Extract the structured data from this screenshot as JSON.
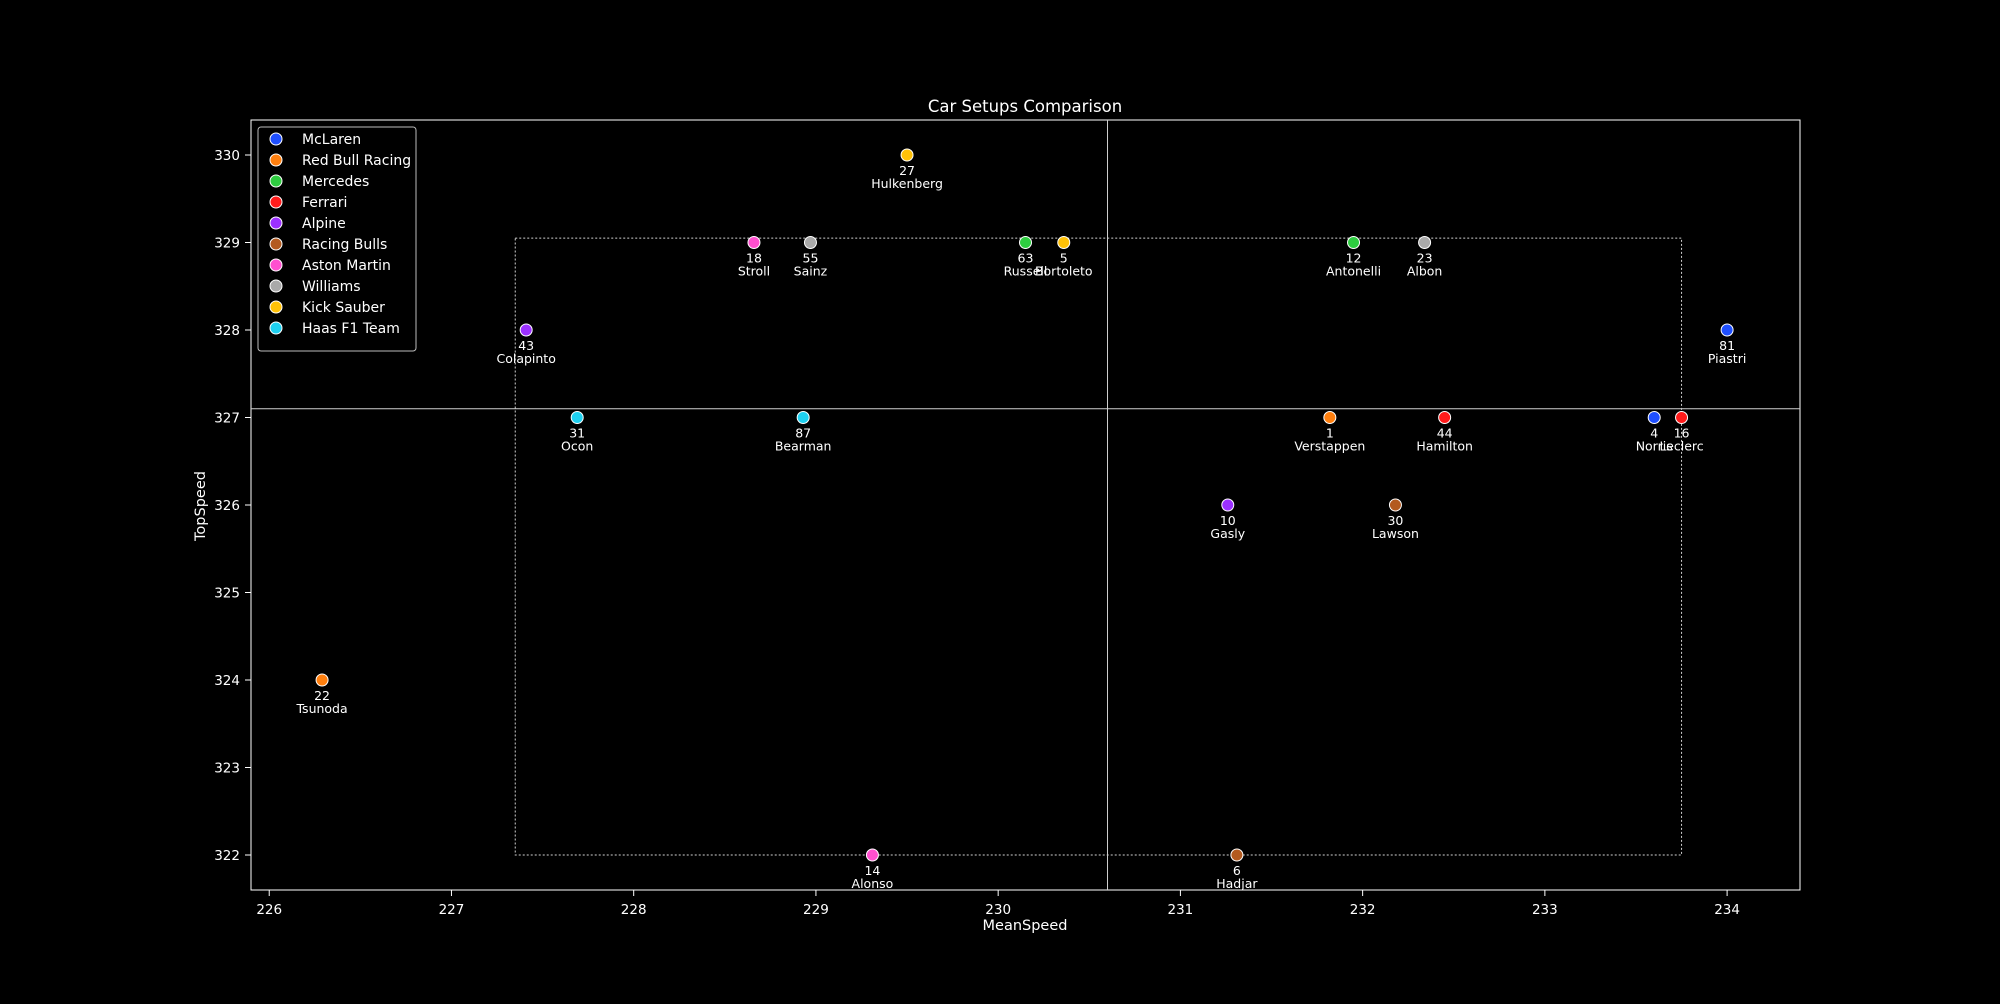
{
  "chart_data": {
    "type": "scatter",
    "title": "Car Setups Comparison",
    "xlabel": "MeanSpeed",
    "ylabel": "TopSpeed",
    "xlim": [
      225.9,
      234.4
    ],
    "ylim": [
      321.6,
      330.4
    ],
    "xticks": [
      226,
      227,
      228,
      229,
      230,
      231,
      232,
      233,
      234
    ],
    "yticks": [
      322,
      323,
      324,
      325,
      326,
      327,
      328,
      329,
      330
    ],
    "grid": false,
    "legend_position": "top-left",
    "reference_lines": {
      "x": 230.6,
      "y": 327.1
    },
    "highlight_box": {
      "x": [
        227.35,
        233.75
      ],
      "y": [
        322.0,
        329.05
      ]
    },
    "teams": [
      {
        "name": "McLaren",
        "color": "#1f4fff"
      },
      {
        "name": "Red Bull Racing",
        "color": "#ff7f0e"
      },
      {
        "name": "Mercedes",
        "color": "#2ecc40"
      },
      {
        "name": "Ferrari",
        "color": "#ff1a1a"
      },
      {
        "name": "Alpine",
        "color": "#9b30ff"
      },
      {
        "name": "Racing Bulls",
        "color": "#b35a1f"
      },
      {
        "name": "Aston Martin",
        "color": "#ff4fcf"
      },
      {
        "name": "Williams",
        "color": "#a9a9a9"
      },
      {
        "name": "Kick Sauber",
        "color": "#ffc107"
      },
      {
        "name": "Haas F1 Team",
        "color": "#1ed0f0"
      }
    ],
    "points": [
      {
        "number": "81",
        "driver": "Piastri",
        "team": "McLaren",
        "x": 234.0,
        "y": 328
      },
      {
        "number": "4",
        "driver": "Norris",
        "team": "McLaren",
        "x": 233.6,
        "y": 327
      },
      {
        "number": "1",
        "driver": "Verstappen",
        "team": "Red Bull Racing",
        "x": 231.82,
        "y": 327
      },
      {
        "number": "22",
        "driver": "Tsunoda",
        "team": "Red Bull Racing",
        "x": 226.29,
        "y": 324
      },
      {
        "number": "63",
        "driver": "Russell",
        "team": "Mercedes",
        "x": 230.15,
        "y": 329
      },
      {
        "number": "12",
        "driver": "Antonelli",
        "team": "Mercedes",
        "x": 231.95,
        "y": 329
      },
      {
        "number": "44",
        "driver": "Hamilton",
        "team": "Ferrari",
        "x": 232.45,
        "y": 327
      },
      {
        "number": "16",
        "driver": "Leclerc",
        "team": "Ferrari",
        "x": 233.75,
        "y": 327
      },
      {
        "number": "43",
        "driver": "Colapinto",
        "team": "Alpine",
        "x": 227.41,
        "y": 328
      },
      {
        "number": "10",
        "driver": "Gasly",
        "team": "Alpine",
        "x": 231.26,
        "y": 326
      },
      {
        "number": "30",
        "driver": "Lawson",
        "team": "Racing Bulls",
        "x": 232.18,
        "y": 326
      },
      {
        "number": "6",
        "driver": "Hadjar",
        "team": "Racing Bulls",
        "x": 231.31,
        "y": 322
      },
      {
        "number": "18",
        "driver": "Stroll",
        "team": "Aston Martin",
        "x": 228.66,
        "y": 329
      },
      {
        "number": "14",
        "driver": "Alonso",
        "team": "Aston Martin",
        "x": 229.31,
        "y": 322
      },
      {
        "number": "55",
        "driver": "Sainz",
        "team": "Williams",
        "x": 228.97,
        "y": 329
      },
      {
        "number": "23",
        "driver": "Albon",
        "team": "Williams",
        "x": 232.34,
        "y": 329
      },
      {
        "number": "27",
        "driver": "Hulkenberg",
        "team": "Kick Sauber",
        "x": 229.5,
        "y": 330
      },
      {
        "number": "5",
        "driver": "Bortoleto",
        "team": "Kick Sauber",
        "x": 230.36,
        "y": 329
      },
      {
        "number": "31",
        "driver": "Ocon",
        "team": "Haas F1 Team",
        "x": 227.69,
        "y": 327
      },
      {
        "number": "87",
        "driver": "Bearman",
        "team": "Haas F1 Team",
        "x": 228.93,
        "y": 327
      }
    ]
  }
}
